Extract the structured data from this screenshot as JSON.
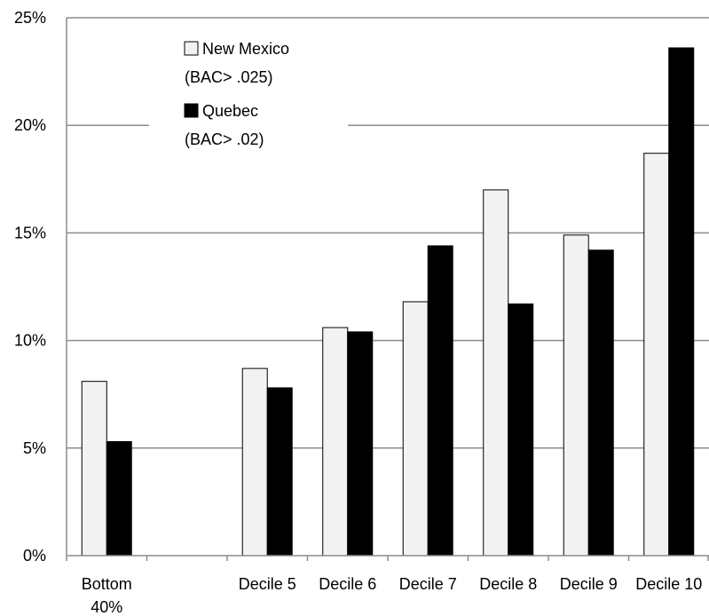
{
  "chart_data": {
    "type": "bar",
    "title": "",
    "xlabel": "",
    "ylabel": "",
    "ylim": [
      0,
      25
    ],
    "y_ticks": [
      "0%",
      "5%",
      "10%",
      "15%",
      "20%",
      "25%"
    ],
    "y_tick_values": [
      0,
      5,
      10,
      15,
      20,
      25
    ],
    "categories": [
      [
        "Bottom",
        "40%"
      ],
      [
        ""
      ],
      [
        "Decile 5"
      ],
      [
        "Decile 6"
      ],
      [
        "Decile 7"
      ],
      [
        "Decile 8"
      ],
      [
        "Decile 9"
      ],
      [
        "Decile 10"
      ]
    ],
    "series": [
      {
        "name_lines": [
          "New Mexico",
          "(BAC> .025)"
        ],
        "color": "#f2f2f2",
        "values": [
          8.1,
          null,
          8.7,
          10.6,
          11.8,
          17.0,
          14.9,
          18.7
        ]
      },
      {
        "name_lines": [
          "Quebec",
          "(BAC> .02)"
        ],
        "color": "#000000",
        "values": [
          5.3,
          null,
          7.8,
          10.4,
          14.4,
          11.7,
          14.2,
          23.6
        ]
      }
    ],
    "grid": true,
    "legend_position": "top-left"
  }
}
